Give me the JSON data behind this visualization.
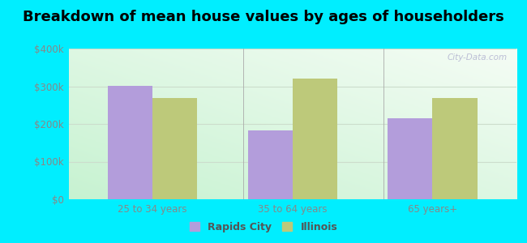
{
  "title": "Breakdown of mean house values by ages of householders",
  "categories": [
    "25 to 34 years",
    "35 to 64 years",
    "65 years+"
  ],
  "rapids_city": [
    302000,
    183000,
    215000
  ],
  "illinois": [
    268000,
    320000,
    268000
  ],
  "bar_color_rapids": "#b39ddb",
  "bar_color_illinois": "#bdc97a",
  "background_color": "#00eeff",
  "ylim": [
    0,
    400000
  ],
  "yticks": [
    0,
    100000,
    200000,
    300000,
    400000
  ],
  "ytick_labels": [
    "$0",
    "$100k",
    "$200k",
    "$300k",
    "$400k"
  ],
  "legend_labels": [
    "Rapids City",
    "Illinois"
  ],
  "bar_width": 0.32,
  "title_fontsize": 13,
  "watermark": "City-Data.com",
  "grid_color": "#ccddcc",
  "tick_color": "#888888",
  "divider_color": "#aaaaaa"
}
